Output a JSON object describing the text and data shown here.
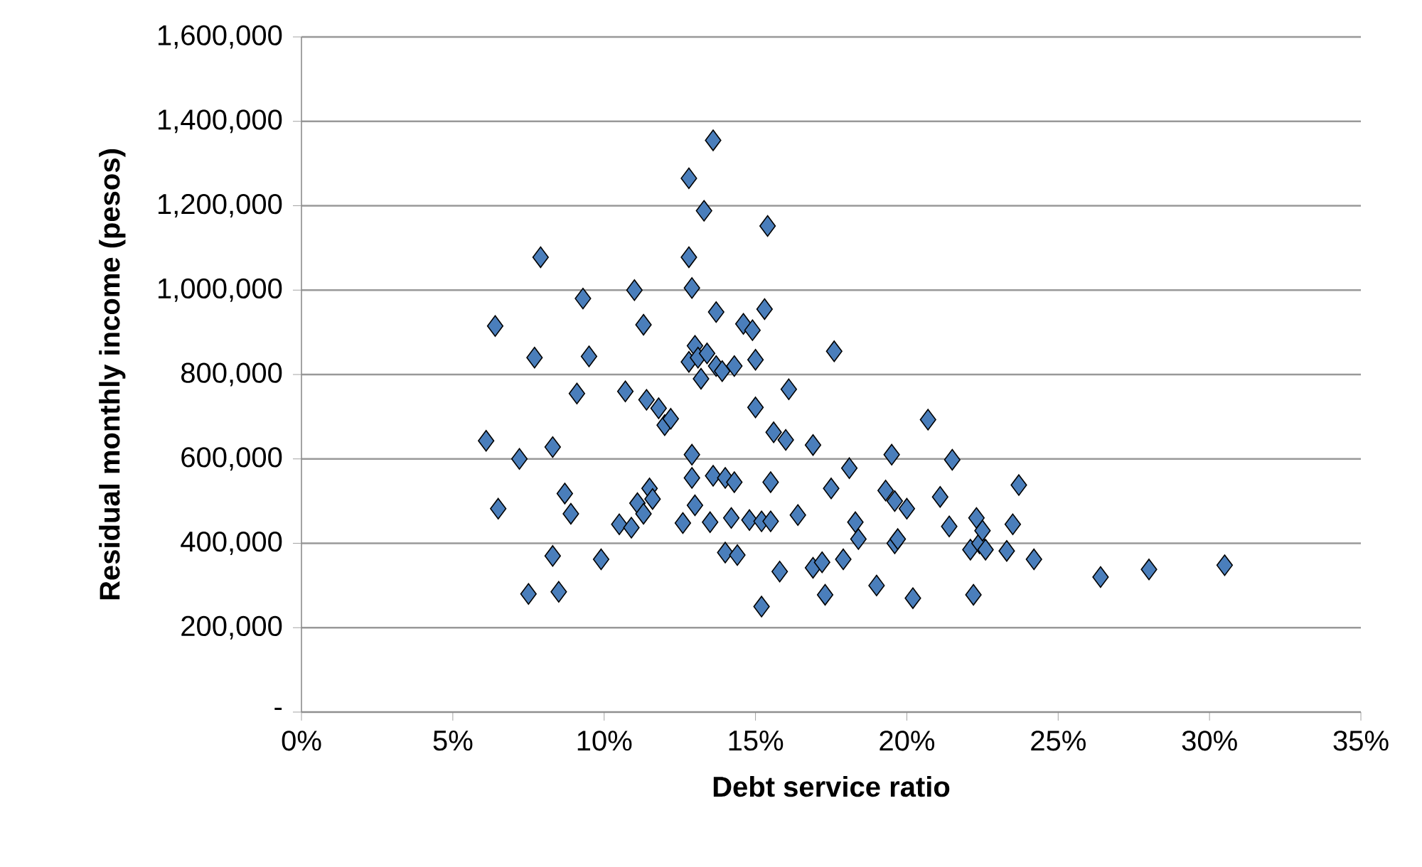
{
  "chart_data": {
    "type": "scatter",
    "xlabel": "Debt service ratio",
    "ylabel": "Residual monthly income (pesos)",
    "x": [
      6.1,
      6.4,
      6.5,
      7.2,
      7.5,
      7.7,
      7.9,
      8.3,
      8.3,
      8.5,
      8.7,
      8.9,
      9.1,
      9.3,
      9.5,
      9.9,
      10.5,
      10.7,
      10.9,
      11.0,
      11.1,
      11.3,
      11.3,
      11.4,
      11.5,
      11.6,
      11.8,
      12.0,
      12.2,
      12.6,
      12.8,
      12.8,
      12.8,
      12.9,
      12.9,
      12.9,
      13.0,
      13.0,
      13.1,
      13.2,
      13.3,
      13.4,
      13.5,
      13.6,
      13.6,
      13.7,
      13.7,
      13.9,
      14.0,
      14.0,
      14.2,
      14.3,
      14.3,
      14.4,
      14.6,
      14.8,
      14.9,
      15.0,
      15.0,
      15.2,
      15.2,
      15.3,
      15.4,
      15.5,
      15.5,
      15.6,
      15.8,
      16.0,
      16.1,
      16.4,
      16.9,
      16.9,
      17.2,
      17.3,
      17.5,
      17.6,
      17.9,
      18.1,
      18.3,
      18.4,
      19.0,
      19.3,
      19.5,
      19.6,
      19.6,
      19.7,
      20.0,
      20.2,
      20.7,
      21.1,
      21.4,
      21.5,
      22.1,
      22.2,
      22.3,
      22.4,
      22.5,
      22.6,
      23.3,
      23.5,
      23.7,
      24.2,
      26.4,
      28.0,
      30.5
    ],
    "values": [
      643000,
      915000,
      482000,
      600000,
      280000,
      840000,
      1078000,
      628000,
      370000,
      285000,
      518000,
      470000,
      755000,
      980000,
      843000,
      362000,
      445000,
      760000,
      437000,
      1000000,
      495000,
      918000,
      470000,
      740000,
      530000,
      505000,
      720000,
      680000,
      695000,
      448000,
      1265000,
      1078000,
      830000,
      1005000,
      555000,
      610000,
      868000,
      490000,
      840000,
      790000,
      1188000,
      850000,
      450000,
      1355000,
      560000,
      948000,
      820000,
      808000,
      555000,
      378000,
      460000,
      820000,
      545000,
      372000,
      920000,
      455000,
      905000,
      722000,
      835000,
      250000,
      452000,
      955000,
      1152000,
      545000,
      452000,
      663000,
      333000,
      645000,
      765000,
      467000,
      633000,
      342000,
      355000,
      278000,
      530000,
      855000,
      362000,
      578000,
      450000,
      410000,
      300000,
      525000,
      610000,
      500000,
      400000,
      410000,
      482000,
      270000,
      693000,
      510000,
      440000,
      598000,
      385000,
      278000,
      460000,
      400000,
      430000,
      385000,
      382000,
      445000,
      538000,
      362000,
      320000,
      338000,
      348000
    ],
    "color": "#4a7ebb",
    "marker": "diamond",
    "xlim": [
      0,
      35
    ],
    "xticks": [
      {
        "value": 0,
        "label": "0%"
      },
      {
        "value": 5,
        "label": "5%"
      },
      {
        "value": 10,
        "label": "10%"
      },
      {
        "value": 15,
        "label": "15%"
      },
      {
        "value": 20,
        "label": "20%"
      },
      {
        "value": 25,
        "label": "25%"
      },
      {
        "value": 30,
        "label": "30%"
      },
      {
        "value": 35,
        "label": "35%"
      }
    ],
    "ylim": [
      0,
      1600000
    ],
    "yticks": [
      {
        "value": 0,
        "label": "-"
      },
      {
        "value": 200000,
        "label": "200,000"
      },
      {
        "value": 400000,
        "label": "400,000"
      },
      {
        "value": 600000,
        "label": "600,000"
      },
      {
        "value": 800000,
        "label": "800,000"
      },
      {
        "value": 1000000,
        "label": "1,000,000"
      },
      {
        "value": 1200000,
        "label": "1,200,000"
      },
      {
        "value": 1400000,
        "label": "1,400,000"
      },
      {
        "value": 1600000,
        "label": "1,600,000"
      }
    ],
    "grid": "y"
  }
}
